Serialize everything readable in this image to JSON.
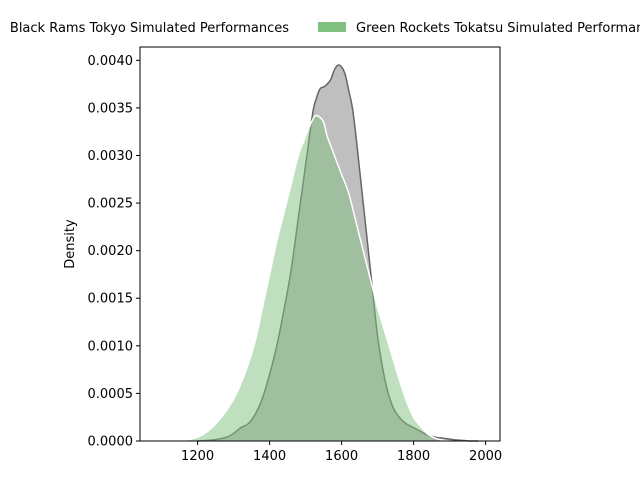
{
  "chart_data": {
    "type": "area",
    "title": "",
    "xlabel": "",
    "ylabel": "Density",
    "xlim": [
      1040,
      2040
    ],
    "ylim": [
      0,
      0.00414
    ],
    "legend_placement": "top-center",
    "grid": false,
    "x_ticks": [
      1200,
      1400,
      1600,
      1800,
      2000
    ],
    "x_tick_labels": [
      "1200",
      "1400",
      "1600",
      "1800",
      "2000"
    ],
    "y_ticks": [
      0.0,
      0.0005,
      0.001,
      0.0015,
      0.002,
      0.0025,
      0.003,
      0.0035,
      0.004
    ],
    "y_tick_labels": [
      "0.0000",
      "0.0005",
      "0.0010",
      "0.0015",
      "0.0020",
      "0.0025",
      "0.0030",
      "0.0035",
      "0.0040"
    ],
    "series": [
      {
        "name": "Black Rams Tokyo Simulated Performances",
        "color": "#808080",
        "fill_opacity": 0.5,
        "stroke": "#666666",
        "x": [
          1200,
          1240,
          1280,
          1300,
          1320,
          1340,
          1360,
          1380,
          1400,
          1420,
          1440,
          1460,
          1480,
          1500,
          1520,
          1530,
          1540,
          1550,
          1560,
          1570,
          1580,
          1590,
          1600,
          1610,
          1620,
          1630,
          1640,
          1660,
          1680,
          1700,
          1720,
          1740,
          1760,
          1780,
          1800,
          1820,
          1840,
          1860,
          1880,
          1900,
          1920,
          1940,
          1960,
          1980
        ],
        "y": [
          0.0,
          1e-05,
          4e-05,
          8e-05,
          0.00014,
          0.00018,
          0.00028,
          0.00045,
          0.0007,
          0.001,
          0.00138,
          0.0018,
          0.00235,
          0.0029,
          0.00345,
          0.0036,
          0.0037,
          0.00372,
          0.00375,
          0.0038,
          0.0039,
          0.00395,
          0.00393,
          0.00385,
          0.00368,
          0.0035,
          0.0032,
          0.0025,
          0.0018,
          0.0011,
          0.00065,
          0.00038,
          0.00025,
          0.00018,
          0.00014,
          0.0001,
          6e-05,
          4e-05,
          3e-05,
          2e-05,
          1e-05,
          5e-06,
          0.0,
          0.0
        ]
      },
      {
        "name": "Green Rockets Tokatsu Simulated Performances",
        "color": "#7fbf7f",
        "fill_opacity": 0.5,
        "stroke": "#ffffff",
        "x": [
          1140,
          1180,
          1200,
          1220,
          1240,
          1260,
          1280,
          1300,
          1320,
          1340,
          1360,
          1380,
          1400,
          1420,
          1440,
          1460,
          1480,
          1500,
          1520,
          1530,
          1540,
          1550,
          1560,
          1570,
          1580,
          1600,
          1620,
          1640,
          1660,
          1680,
          1700,
          1720,
          1740,
          1760,
          1780,
          1800,
          1820,
          1840,
          1860,
          1880,
          1900
        ],
        "y": [
          0.0,
          2e-05,
          4e-05,
          8e-05,
          0.00014,
          0.00022,
          0.00032,
          0.00044,
          0.0006,
          0.0008,
          0.00105,
          0.0014,
          0.00175,
          0.0021,
          0.0024,
          0.0027,
          0.003,
          0.0032,
          0.00338,
          0.00342,
          0.0034,
          0.00335,
          0.0032,
          0.0031,
          0.003,
          0.0028,
          0.0026,
          0.0023,
          0.002,
          0.0017,
          0.0014,
          0.00115,
          0.0009,
          0.00065,
          0.00042,
          0.00025,
          0.00015,
          7e-05,
          3e-05,
          1e-05,
          0.0
        ]
      }
    ]
  }
}
